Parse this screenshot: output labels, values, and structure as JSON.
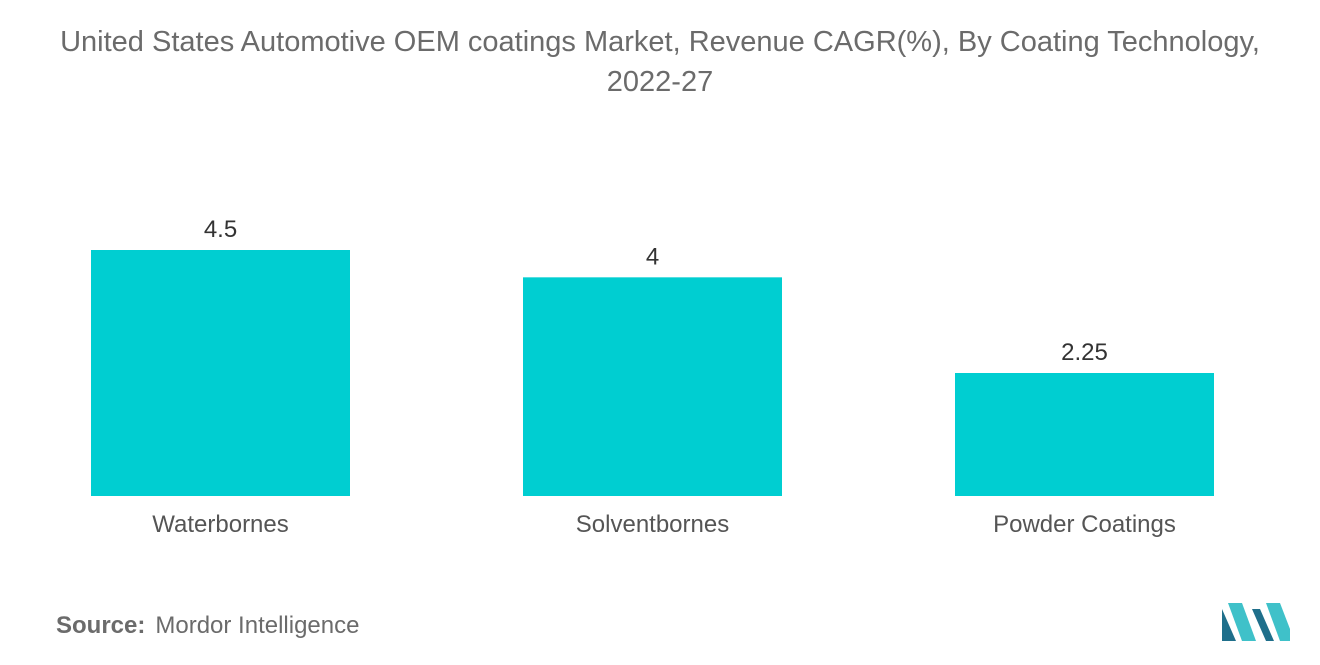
{
  "chart_data": {
    "type": "bar",
    "title": "United States Automotive OEM coatings Market, Revenue CAGR(%), By Coating Technology, 2022-27",
    "categories": [
      "Waterbornes",
      "Solventbornes",
      "Powder Coatings"
    ],
    "values": [
      4.5,
      4,
      2.25
    ],
    "value_labels": [
      "4.5",
      "4",
      "2.25"
    ],
    "xlabel": "",
    "ylabel": "",
    "ylim": [
      0,
      4.5
    ],
    "grid": false,
    "legend": "none",
    "bar_color": "#00ced1"
  },
  "source": {
    "label": "Source:",
    "text": "Mordor Intelligence"
  },
  "logo": {
    "icon": "mordor-intelligence-logo",
    "colors": [
      "#1f6f8b",
      "#3fc1c9"
    ]
  }
}
